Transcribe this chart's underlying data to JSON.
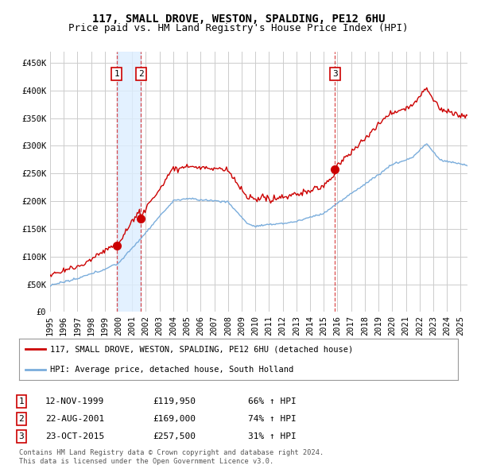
{
  "title": "117, SMALL DROVE, WESTON, SPALDING, PE12 6HU",
  "subtitle": "Price paid vs. HM Land Registry's House Price Index (HPI)",
  "ylim": [
    0,
    470000
  ],
  "yticks": [
    0,
    50000,
    100000,
    150000,
    200000,
    250000,
    300000,
    350000,
    400000,
    450000
  ],
  "ytick_labels": [
    "£0",
    "£50K",
    "£100K",
    "£150K",
    "£200K",
    "£250K",
    "£300K",
    "£350K",
    "£400K",
    "£450K"
  ],
  "red_line_color": "#cc0000",
  "blue_line_color": "#7aaddc",
  "vline_color": "#cc0000",
  "grid_color": "#cccccc",
  "shade_color": "#ddeeff",
  "background_color": "#ffffff",
  "legend_label_red": "117, SMALL DROVE, WESTON, SPALDING, PE12 6HU (detached house)",
  "legend_label_blue": "HPI: Average price, detached house, South Holland",
  "sale1_date": 1999.87,
  "sale1_price": 119950,
  "sale1_label": "1",
  "sale2_date": 2001.64,
  "sale2_price": 169000,
  "sale2_label": "2",
  "sale3_date": 2015.81,
  "sale3_price": 257500,
  "sale3_label": "3",
  "table_rows": [
    [
      "1",
      "12-NOV-1999",
      "£119,950",
      "66% ↑ HPI"
    ],
    [
      "2",
      "22-AUG-2001",
      "£169,000",
      "74% ↑ HPI"
    ],
    [
      "3",
      "23-OCT-2015",
      "£257,500",
      "31% ↑ HPI"
    ]
  ],
  "footer": "Contains HM Land Registry data © Crown copyright and database right 2024.\nThis data is licensed under the Open Government Licence v3.0.",
  "title_fontsize": 10,
  "subtitle_fontsize": 9,
  "tick_fontsize": 7.5
}
